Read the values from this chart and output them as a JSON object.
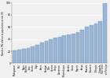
{
  "ylabel": "Nombre ITN relative to population at risk (%)",
  "categories": [
    "Madagascar",
    "Mali",
    "Niger",
    "Burkina\nFaso",
    "Guinée",
    "Togo",
    "Bénin",
    "Sénégal",
    "Côte\nd'Ivoire",
    "Congo",
    "Cameroun",
    "Mozambique",
    "Zambie",
    "Ghana",
    "Nigeria",
    "Kenya",
    "Rwanda",
    "Tanzanie",
    "Éthiopie",
    "Ouganda",
    "São Tomé\net Príncipe"
  ],
  "values": [
    21,
    23,
    24,
    25,
    28,
    30,
    34,
    37,
    40,
    42,
    44,
    46,
    48,
    49,
    51,
    55,
    60,
    63,
    65,
    70,
    100
  ],
  "bar_color": "#9ab5d5",
  "ylim": [
    0,
    100
  ],
  "yticks": [
    0,
    20,
    40,
    60,
    80,
    100
  ],
  "bg_color": "#f0f0f0",
  "grid_color": "#ffffff"
}
